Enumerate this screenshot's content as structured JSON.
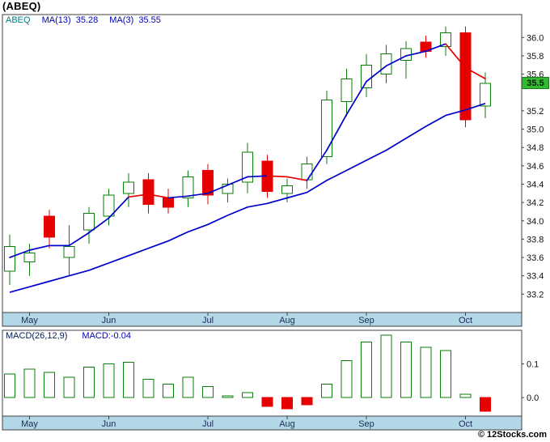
{
  "title": "(ABEQ)",
  "legend": {
    "symbol": "ABEQ",
    "items": [
      {
        "label": "MA(13)",
        "value": "35.28"
      },
      {
        "label": "MA(3)",
        "value": "35.55"
      }
    ]
  },
  "price_tag": {
    "value": "35.5"
  },
  "macd_legend": {
    "params": "MACD(26,12,9)",
    "current": "MACD:-0.04"
  },
  "footer": {
    "credit": "© 12Stocks.com"
  },
  "colors": {
    "up_green": "#0a7d0a",
    "down_red": "#e60000",
    "ma_blue": "#0000cc",
    "axis_band": "#b2d8e8",
    "month_text": "#1b2a55",
    "border": "#404040",
    "tick_text": "#111111",
    "tag_bg": "#35b935",
    "tag_border": "#1e7a1e",
    "tag_text": "#002200",
    "legend_symbol": "#008080",
    "legend_value": "#0000bb",
    "macd_params_text": "#001a4d"
  },
  "chart_data": [
    {
      "type": "candlestick",
      "title": "(ABEQ) weekly price",
      "x_labels": [
        "May",
        "Jun",
        "Jul",
        "Aug",
        "Sep",
        "Oct"
      ],
      "x_label_indices": [
        1,
        5,
        10,
        14,
        18,
        23
      ],
      "ylim": [
        33.0,
        36.25
      ],
      "yticks": [
        36.0,
        35.8,
        35.6,
        35.2,
        35.0,
        34.8,
        34.6,
        34.4,
        34.2,
        34.0,
        33.8,
        33.6,
        33.4,
        33.2
      ],
      "last_price": 35.5,
      "candles": [
        {
          "o": 33.45,
          "h": 33.85,
          "l": 33.3,
          "c": 33.72
        },
        {
          "o": 33.55,
          "h": 33.75,
          "l": 33.4,
          "c": 33.65
        },
        {
          "o": 34.05,
          "h": 34.12,
          "l": 33.7,
          "c": 33.82
        },
        {
          "o": 33.6,
          "h": 33.95,
          "l": 33.4,
          "c": 33.72
        },
        {
          "o": 33.9,
          "h": 34.15,
          "l": 33.75,
          "c": 34.08
        },
        {
          "o": 34.05,
          "h": 34.35,
          "l": 33.95,
          "c": 34.28
        },
        {
          "o": 34.3,
          "h": 34.52,
          "l": 34.15,
          "c": 34.42
        },
        {
          "o": 34.45,
          "h": 34.52,
          "l": 34.08,
          "c": 34.18
        },
        {
          "o": 34.25,
          "h": 34.35,
          "l": 34.08,
          "c": 34.15
        },
        {
          "o": 34.25,
          "h": 34.55,
          "l": 34.15,
          "c": 34.48
        },
        {
          "o": 34.55,
          "h": 34.62,
          "l": 34.18,
          "c": 34.28
        },
        {
          "o": 34.3,
          "h": 34.46,
          "l": 34.2,
          "c": 34.4
        },
        {
          "o": 34.42,
          "h": 34.85,
          "l": 34.3,
          "c": 34.75
        },
        {
          "o": 34.65,
          "h": 34.72,
          "l": 34.25,
          "c": 34.32
        },
        {
          "o": 34.3,
          "h": 34.46,
          "l": 34.2,
          "c": 34.38
        },
        {
          "o": 34.45,
          "h": 34.7,
          "l": 34.35,
          "c": 34.62
        },
        {
          "o": 34.7,
          "h": 35.42,
          "l": 34.62,
          "c": 35.32
        },
        {
          "o": 35.3,
          "h": 35.66,
          "l": 35.14,
          "c": 35.55
        },
        {
          "o": 35.45,
          "h": 35.82,
          "l": 35.35,
          "c": 35.7
        },
        {
          "o": 35.6,
          "h": 35.92,
          "l": 35.5,
          "c": 35.82
        },
        {
          "o": 35.75,
          "h": 35.96,
          "l": 35.55,
          "c": 35.88
        },
        {
          "o": 35.95,
          "h": 36.02,
          "l": 35.78,
          "c": 35.85
        },
        {
          "o": 35.9,
          "h": 36.12,
          "l": 35.8,
          "c": 36.05
        },
        {
          "o": 36.05,
          "h": 36.12,
          "l": 35.02,
          "c": 35.1
        },
        {
          "o": 35.25,
          "h": 35.62,
          "l": 35.12,
          "c": 35.5
        }
      ],
      "series": [
        {
          "name": "MA(13)",
          "values": [
            33.22,
            33.28,
            33.34,
            33.4,
            33.46,
            33.54,
            33.62,
            33.7,
            33.78,
            33.88,
            33.96,
            34.06,
            34.15,
            34.19,
            34.25,
            34.31,
            34.44,
            34.55,
            34.66,
            34.77,
            34.9,
            35.03,
            35.15,
            35.21,
            35.28
          ]
        },
        {
          "name": "MA(3)",
          "values": [
            33.6,
            33.68,
            33.73,
            33.73,
            33.87,
            34.03,
            34.26,
            34.29,
            34.25,
            34.27,
            34.3,
            34.39,
            34.48,
            34.49,
            34.48,
            34.44,
            34.77,
            35.16,
            35.52,
            35.69,
            35.8,
            35.85,
            35.93,
            35.67,
            35.55
          ],
          "segment_colors": [
            "b",
            "b",
            "b",
            "b",
            "b",
            "b",
            "r",
            "r",
            "b",
            "b",
            "b",
            "b",
            "b",
            "r",
            "r",
            "b",
            "b",
            "b",
            "b",
            "b",
            "b",
            "b",
            "r",
            "r"
          ]
        }
      ]
    },
    {
      "type": "bar",
      "name": "MACD(26,12,9)",
      "current_value": -0.04,
      "x_labels": [
        "May",
        "Jun",
        "Jul",
        "Aug",
        "Sep",
        "Oct"
      ],
      "x_label_indices": [
        1,
        5,
        10,
        14,
        18,
        23
      ],
      "ylim": [
        -0.055,
        0.2
      ],
      "yticks": [
        {
          "label": "0.1",
          "value": 0.1
        },
        {
          "label": "0.0",
          "value": 0.0
        }
      ],
      "values": [
        0.07,
        0.085,
        0.075,
        0.06,
        0.09,
        0.1,
        0.105,
        0.055,
        0.04,
        0.06,
        0.033,
        0.005,
        0.015,
        -0.026,
        -0.033,
        -0.021,
        0.04,
        0.11,
        0.165,
        0.185,
        0.165,
        0.15,
        0.14,
        0.01,
        -0.04
      ]
    }
  ]
}
